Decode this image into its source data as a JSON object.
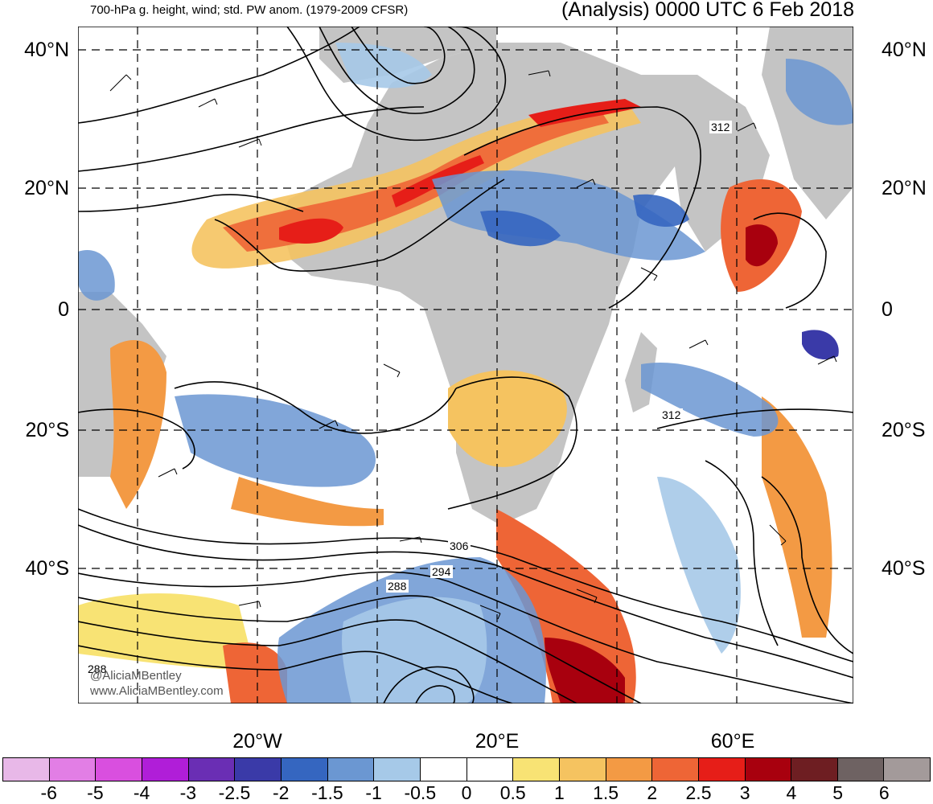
{
  "header": {
    "left": "700-hPa g. height, wind; std. PW anom. (1979-2009 CFSR)",
    "right": "(Analysis) 0000 UTC 6 Feb 2018"
  },
  "lat_labels": [
    "40°N",
    "20°N",
    "0",
    "20°S",
    "40°S"
  ],
  "lon_labels": [
    "20°W",
    "20°E",
    "60°E"
  ],
  "contour_labels": [
    "312",
    "312",
    "306",
    "294",
    "288",
    "288"
  ],
  "credit": [
    "@AliciaMBentley",
    "www.AliciaMBentley.com"
  ],
  "colorbar": {
    "labels": [
      "-6",
      "-5",
      "-4",
      "-3",
      "-2.5",
      "-2",
      "-1.5",
      "-1",
      "-0.5",
      "0",
      "0.5",
      "1",
      "1.5",
      "2",
      "2.5",
      "3",
      "4",
      "5",
      "6"
    ],
    "colors": [
      "#e8b8e8",
      "#e27ee5",
      "#d94fdf",
      "#b01ed8",
      "#6a2eb4",
      "#3a3aa8",
      "#3566c0",
      "#6b97d2",
      "#a6c9e8",
      "#ffffff",
      "#ffffff",
      "#f8e374",
      "#f5c360",
      "#f39a44",
      "#ee6536",
      "#e61e18",
      "#a8000e",
      "#6e1e22",
      "#6e6262",
      "#a39a9a"
    ]
  },
  "map_colors": {
    "land": "#c4c4c4",
    "ocean": "#ffffff"
  }
}
